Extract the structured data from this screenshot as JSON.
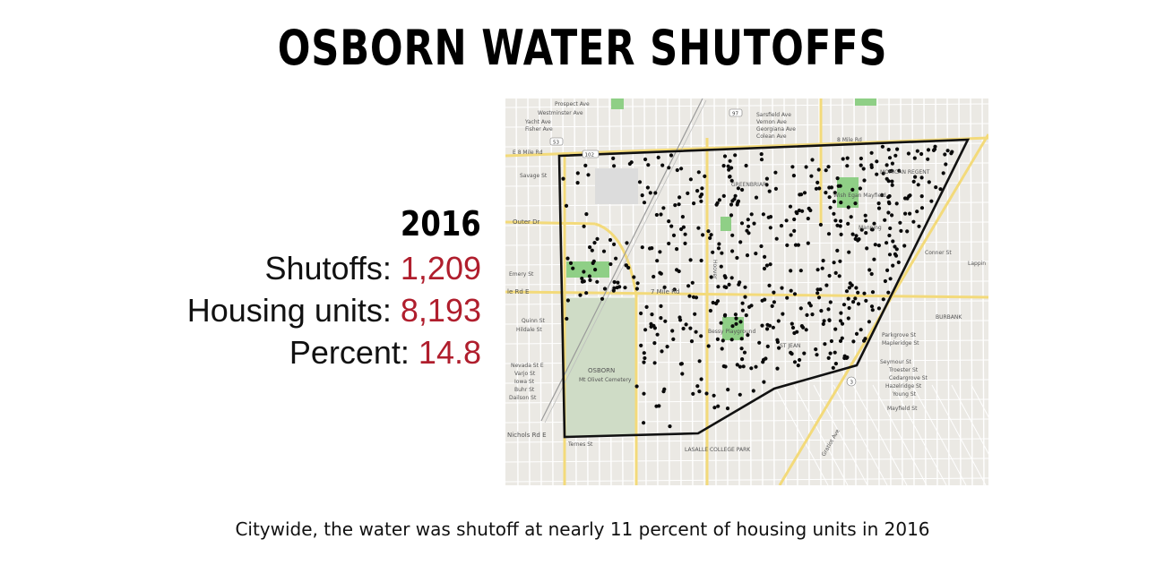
{
  "title": "OSBORN WATER SHUTOFFS",
  "stats": {
    "year": "2016",
    "rows": [
      {
        "label": "Shutoffs:",
        "value": "1,209"
      },
      {
        "label": "Housing units:",
        "value": "8,193"
      },
      {
        "label": "Percent:",
        "value": "14.8"
      }
    ]
  },
  "caption": "Citywide, the water was shutoff at nearly 11 percent of housing units in 2016",
  "map": {
    "labels": {
      "prospect": "Prospect Ave",
      "westminster": "Westminster Ave",
      "yacht": "Yacht Ave",
      "fisher": "Fisher Ave",
      "sarsfield": "Sarsfield Ave",
      "vernon": "Vernon Ave",
      "georgiana": "Georgiana Ave",
      "colean": "Colean Ave",
      "eight_mile": "8 Mile Rd",
      "e8mile": "E 8 Mile Rd",
      "savage": "Savage St",
      "outer": "Outer Dr",
      "outer_e": "Outer Dr E",
      "seven_mile": "7 Mile Rd",
      "e7mile": "le Rd E",
      "emery": "Emery St",
      "quinn": "Quinn St",
      "hildale": "Hildale St",
      "nevada": "Nevada St E",
      "varjo": "Varjo St",
      "iowa": "Iowa St",
      "buhr": "Buhr St",
      "dailson": "Dailson St",
      "tirney": "Ternes St",
      "nichols": "Nichols Rd E",
      "osborn": "OSBORN",
      "cemetery": "Mt Olivet Cemetery",
      "bessey": "Bessy Playground",
      "lasalle": "LASALLE COLLEGE PARK",
      "mohican": "MOHICAN REGENT",
      "burbank": "BURBANK",
      "greenbriar": "GREENBRIAR",
      "stjean": "ST JEAN",
      "seymour": "Seymour St",
      "trosetter": "Troester St",
      "cedargrove": "Cedargrove St",
      "hazelridge": "Hazelridge St",
      "young": "Young St",
      "mayfield": "Mayfield St",
      "parkgrove": "Parkgrove St",
      "maplerdge": "Mapleridge St",
      "gratiot": "Gratiot Ave",
      "manning": "Manning",
      "conner": "Conner St",
      "lappin": "Lappin",
      "bessey_park": "Wish Egan Mayfield",
      "hoover": "Hoover",
      "route53": "53",
      "route102": "102",
      "route97": "97",
      "route3": "3"
    }
  }
}
